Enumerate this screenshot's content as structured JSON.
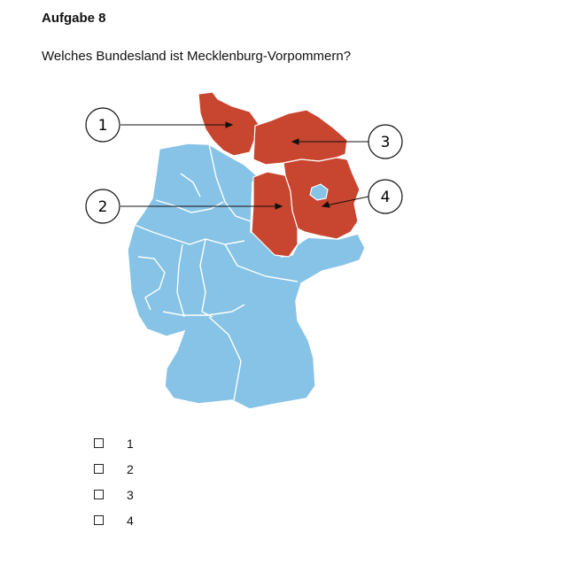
{
  "task": {
    "title": "Aufgabe 8",
    "question": "Welches Bundesland ist Mecklenburg-Vorpommern?"
  },
  "map": {
    "highlight_color": "#c8452f",
    "base_color": "#86c3e6",
    "markers": [
      {
        "label": "1"
      },
      {
        "label": "2"
      },
      {
        "label": "3"
      },
      {
        "label": "4"
      }
    ]
  },
  "options": [
    {
      "label": "1",
      "checked": false
    },
    {
      "label": "2",
      "checked": false
    },
    {
      "label": "3",
      "checked": false
    },
    {
      "label": "4",
      "checked": false
    }
  ]
}
